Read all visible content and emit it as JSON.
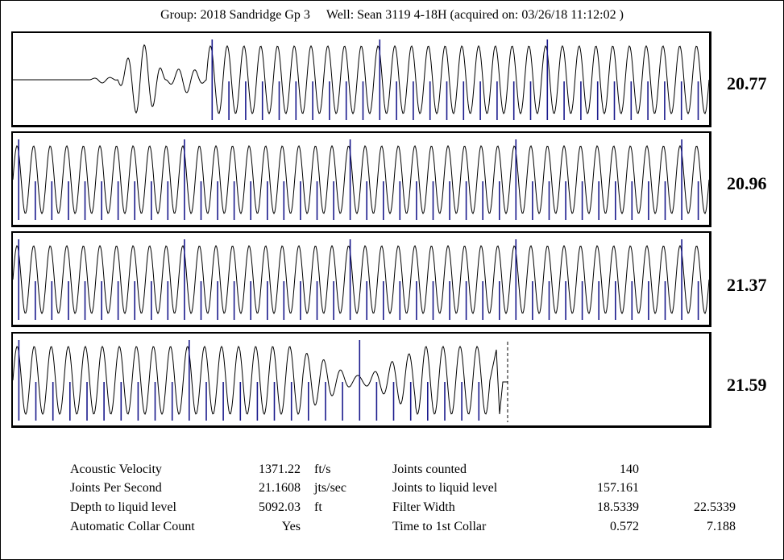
{
  "header": {
    "group": "Group: 2018 Sandridge Gp 3",
    "well": "Well: Sean 3119 4-18H (acquired on: 03/26/18 11:12:02 )"
  },
  "colors": {
    "trace": "#000000",
    "collar_marker": "#1a1a8c",
    "border": "#000000"
  },
  "chart_data": {
    "type": "line",
    "title": "",
    "description_rows": "acoustic trace split into 4 stacked rows with joint collar markers",
    "rows": [
      {
        "jps": "20.77",
        "cycles": 30,
        "lead_in": true,
        "tail_out": false
      },
      {
        "jps": "20.96",
        "cycles": 42,
        "lead_in": false,
        "tail_out": false
      },
      {
        "jps": "21.37",
        "cycles": 42,
        "lead_in": false,
        "tail_out": false
      },
      {
        "jps": "21.59",
        "cycles": 28,
        "lead_in": false,
        "tail_out": true
      }
    ]
  },
  "stats": {
    "acoustic_velocity": {
      "label": "Acoustic Velocity",
      "value": "1371.22",
      "unit": "ft/s"
    },
    "joints_per_second": {
      "label": "Joints Per Second",
      "value": "21.1608",
      "unit": "jts/sec"
    },
    "depth_to_liquid": {
      "label": "Depth to liquid level",
      "value": "5092.03",
      "unit": "ft"
    },
    "auto_collar_count": {
      "label": "Automatic Collar Count",
      "value": "Yes"
    },
    "joints_counted": {
      "label": "Joints counted",
      "value": "140"
    },
    "joints_to_liquid": {
      "label": "Joints to liquid level",
      "value": "157.161"
    },
    "filter_width": {
      "label": "Filter Width",
      "value": "18.5339",
      "value2": "22.5339"
    },
    "time_first_collar": {
      "label": "Time to 1st Collar",
      "value": "0.572",
      "value2": "7.188"
    }
  }
}
